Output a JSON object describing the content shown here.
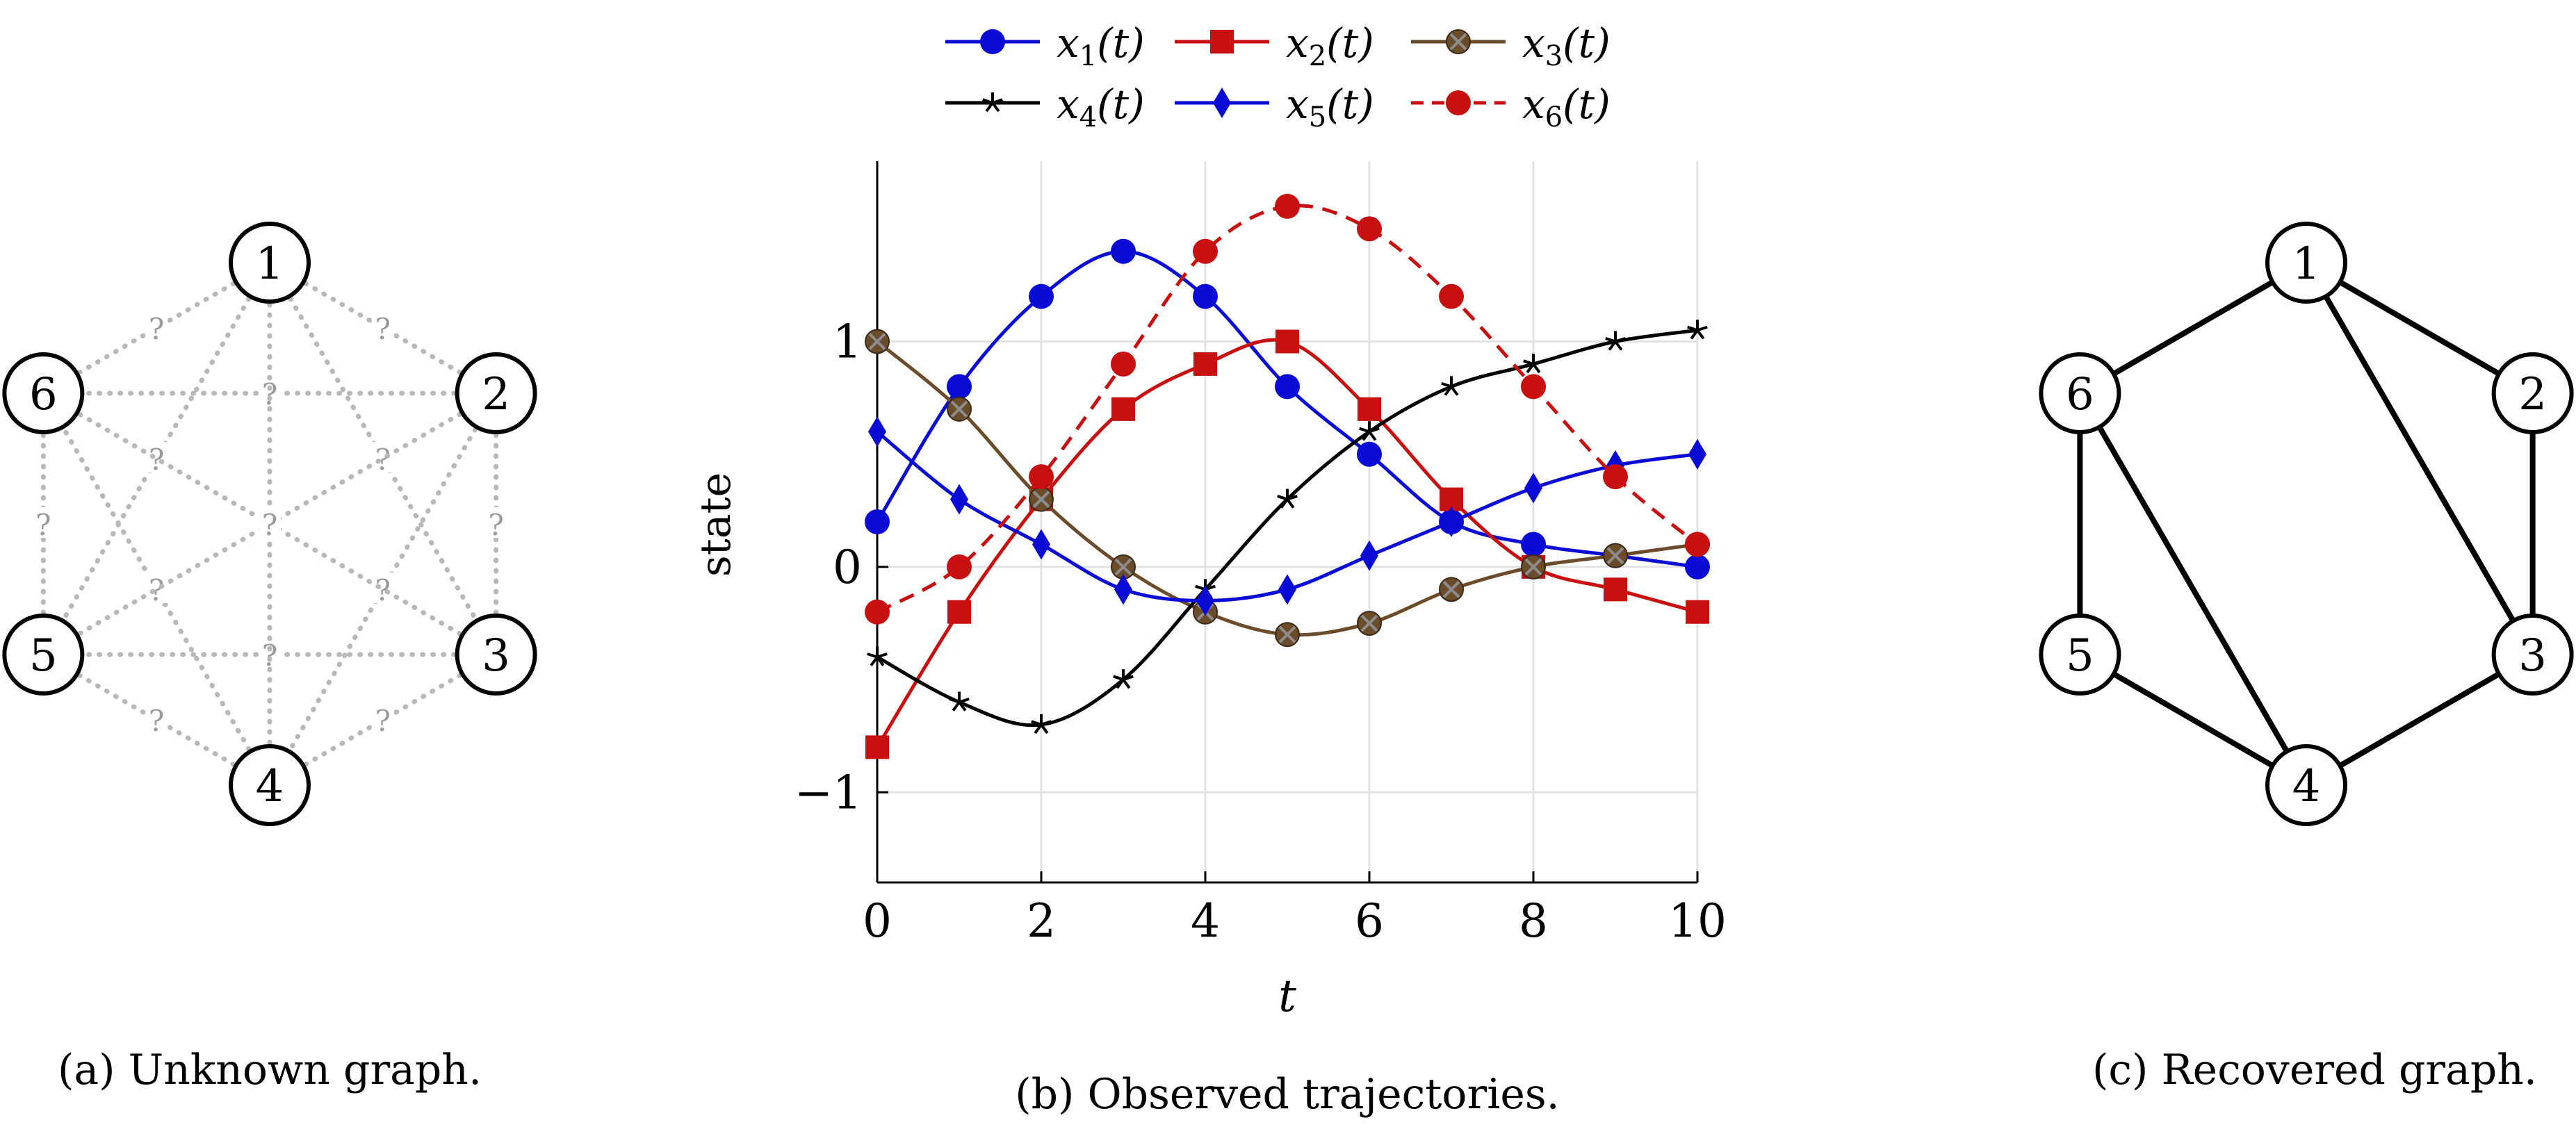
{
  "figure": {
    "panel_a": {
      "caption": "(a) Unknown graph.",
      "nodes": [
        "1",
        "2",
        "3",
        "4",
        "5",
        "6"
      ],
      "unknown_marker": "?",
      "candidate_edges": [
        [
          1,
          2
        ],
        [
          2,
          3
        ],
        [
          3,
          4
        ],
        [
          4,
          5
        ],
        [
          5,
          6
        ],
        [
          6,
          1
        ],
        [
          1,
          3
        ],
        [
          1,
          5
        ],
        [
          2,
          4
        ],
        [
          2,
          6
        ],
        [
          3,
          5
        ],
        [
          4,
          6
        ],
        [
          2,
          5
        ],
        [
          3,
          6
        ],
        [
          1,
          4
        ]
      ],
      "edge_color": "#b8b8b8"
    },
    "panel_c": {
      "caption": "(c) Recovered graph.",
      "nodes": [
        "1",
        "2",
        "3",
        "4",
        "5",
        "6"
      ],
      "edges": [
        [
          1,
          2
        ],
        [
          2,
          3
        ],
        [
          3,
          4
        ],
        [
          4,
          5
        ],
        [
          5,
          6
        ],
        [
          6,
          1
        ],
        [
          1,
          3
        ],
        [
          4,
          6
        ]
      ],
      "edge_color": "#000000"
    }
  },
  "chart_data": {
    "type": "line",
    "caption": "(b) Observed trajectories.",
    "xlabel": "t",
    "ylabel": "state",
    "xlim": [
      0,
      10
    ],
    "ylim": [
      -1.4,
      1.8
    ],
    "xticks": [
      0,
      2,
      4,
      6,
      8,
      10
    ],
    "yticks": [
      -1,
      0,
      1
    ],
    "x": [
      0,
      1,
      2,
      3,
      4,
      5,
      6,
      7,
      8,
      9,
      10
    ],
    "grid": true,
    "legend_position": "top",
    "series": [
      {
        "name": "x1(t)",
        "label_base": "x",
        "label_sub": "1",
        "label_tail": "(t)",
        "color": "#0b0bd6",
        "marker": "circle",
        "dashed": false,
        "values": [
          0.2,
          0.8,
          1.2,
          1.4,
          1.2,
          0.8,
          0.5,
          0.2,
          0.1,
          0.05,
          0.0
        ]
      },
      {
        "name": "x2(t)",
        "label_base": "x",
        "label_sub": "2",
        "label_tail": "(t)",
        "color": "#c81010",
        "marker": "square",
        "dashed": false,
        "values": [
          -0.8,
          -0.2,
          0.3,
          0.7,
          0.9,
          1.0,
          0.7,
          0.3,
          0.0,
          -0.1,
          -0.2
        ]
      },
      {
        "name": "x3(t)",
        "label_base": "x",
        "label_sub": "3",
        "label_tail": "(t)",
        "color": "#6b4c2a",
        "marker": "otimes",
        "dashed": false,
        "values": [
          1.0,
          0.7,
          0.3,
          0.0,
          -0.2,
          -0.3,
          -0.25,
          -0.1,
          0.0,
          0.05,
          0.1
        ]
      },
      {
        "name": "x4(t)",
        "label_base": "x",
        "label_sub": "4",
        "label_tail": "(t)",
        "color": "#000000",
        "marker": "star",
        "dashed": false,
        "values": [
          -0.4,
          -0.6,
          -0.7,
          -0.5,
          -0.1,
          0.3,
          0.6,
          0.8,
          0.9,
          1.0,
          1.05
        ]
      },
      {
        "name": "x5(t)",
        "label_base": "x",
        "label_sub": "5",
        "label_tail": "(t)",
        "color": "#0b0bd6",
        "marker": "diamond",
        "dashed": false,
        "values": [
          0.6,
          0.3,
          0.1,
          -0.1,
          -0.15,
          -0.1,
          0.05,
          0.2,
          0.35,
          0.45,
          0.5
        ]
      },
      {
        "name": "x6(t)",
        "label_base": "x",
        "label_sub": "6",
        "label_tail": "(t)",
        "color": "#c81010",
        "marker": "circle",
        "dashed": true,
        "values": [
          -0.2,
          0.0,
          0.4,
          0.9,
          1.4,
          1.6,
          1.5,
          1.2,
          0.8,
          0.4,
          0.1
        ]
      }
    ]
  }
}
